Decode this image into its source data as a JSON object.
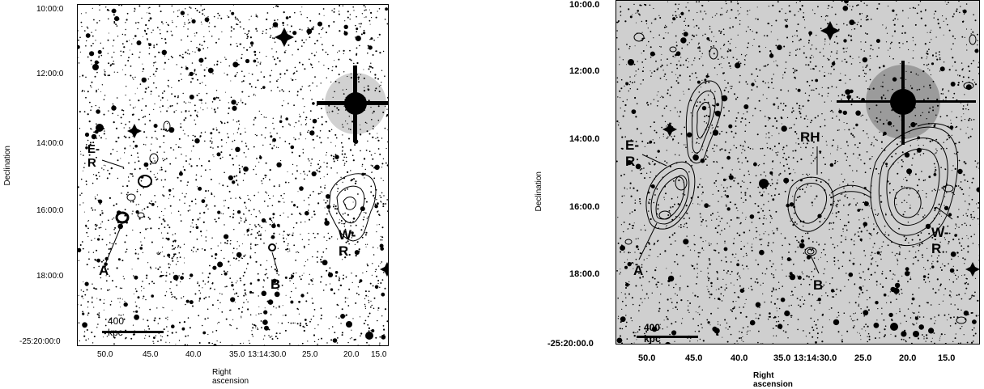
{
  "left": {
    "ylabel": "Declination",
    "xlabel": "Right ascension",
    "yticks": [
      "10:00:0",
      "12:00:0",
      "14:00:0",
      "16:00:0",
      "18:00:0",
      "-25:20:00:0"
    ],
    "xticks": [
      "50.0",
      "45.0",
      "40.0",
      "35.0",
      "13:14:30.0",
      "25.0",
      "20.0",
      "15.0"
    ],
    "labels": {
      "er": "E-R",
      "wr": "W-R",
      "a": "A",
      "b": "B"
    },
    "scale": "400 kpc"
  },
  "right": {
    "ylabel": "Declination",
    "xlabel": "Right ascension",
    "yticks": [
      "10:00.0",
      "12:00.0",
      "14:00.0",
      "16:00.0",
      "18:00.0",
      "-25:20:00.0"
    ],
    "xticks": [
      "50.0",
      "45.0",
      "40.0",
      "35.0",
      "13:14:30.0",
      "25.0",
      "20.0",
      "15.0"
    ],
    "labels": {
      "er": "E-R",
      "rh": "RH",
      "wr": "W-R",
      "a": "A",
      "b": "B"
    },
    "scale": "400 kpc"
  },
  "colors": {
    "ink": "#000000",
    "background": "#ffffff",
    "sky_gray": "#cfcfcf"
  }
}
